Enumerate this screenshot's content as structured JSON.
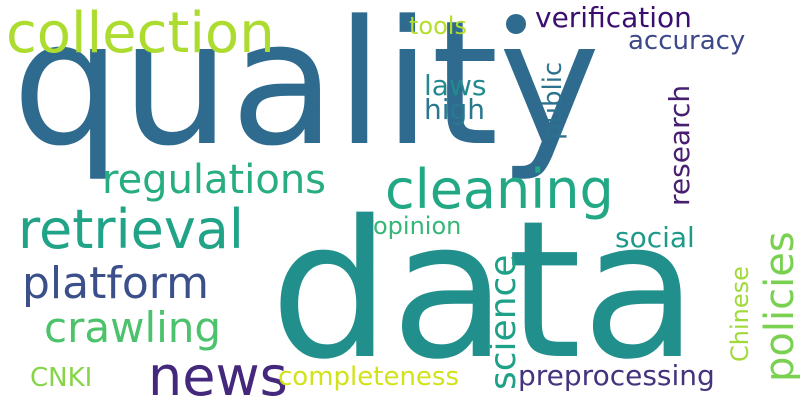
{
  "words": [
    {
      "key": "quality",
      "text": "quality",
      "color": "#2f6b8f"
    },
    {
      "key": "data",
      "text": "data",
      "color": "#21908c"
    },
    {
      "key": "collection",
      "text": "collection",
      "color": "#addc30"
    },
    {
      "key": "cleaning",
      "text": "cleaning",
      "color": "#22a884"
    },
    {
      "key": "retrieval",
      "text": "retrieval",
      "color": "#20a386"
    },
    {
      "key": "news",
      "text": "news",
      "color": "#44287c"
    },
    {
      "key": "regulations",
      "text": "regulations",
      "color": "#27ad81"
    },
    {
      "key": "platform",
      "text": "platform",
      "color": "#3b4f8a"
    },
    {
      "key": "crawling",
      "text": "crawling",
      "color": "#4cc26c"
    },
    {
      "key": "verification",
      "text": "verification",
      "color": "#3b0f70"
    },
    {
      "key": "accuracy",
      "text": "accuracy",
      "color": "#3e4989"
    },
    {
      "key": "tools",
      "text": "tools",
      "color": "#b5de2b"
    },
    {
      "key": "laws",
      "text": "laws",
      "color": "#23898e"
    },
    {
      "key": "high",
      "text": "high",
      "color": "#2a788e"
    },
    {
      "key": "public",
      "text": "public",
      "color": "#2c728e"
    },
    {
      "key": "research",
      "text": "research",
      "color": "#481f70"
    },
    {
      "key": "policies",
      "text": "policies",
      "color": "#7ad151"
    },
    {
      "key": "opinion",
      "text": "opinion",
      "color": "#35b779"
    },
    {
      "key": "social",
      "text": "social",
      "color": "#1f9a8a"
    },
    {
      "key": "science",
      "text": "science",
      "color": "#1fa188"
    },
    {
      "key": "chinese",
      "text": "Chinese",
      "color": "#9fda3a"
    },
    {
      "key": "completeness",
      "text": "completeness",
      "color": "#d2e21b"
    },
    {
      "key": "preprocessing",
      "text": "preprocessing",
      "color": "#46337e"
    },
    {
      "key": "cnki",
      "text": "CNKI",
      "color": "#86d549"
    }
  ]
}
